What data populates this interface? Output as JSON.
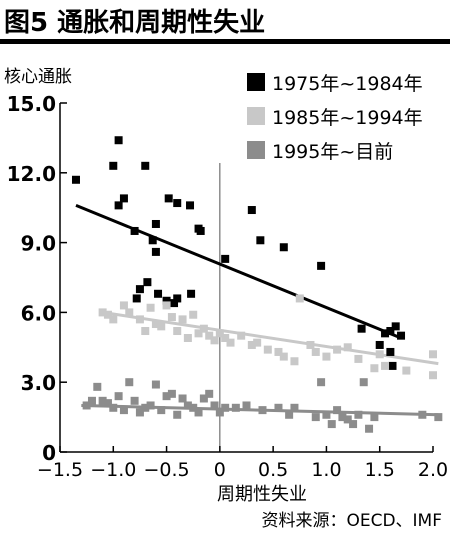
{
  "figure": {
    "title": "图5 通胀和周期性失业",
    "source": "资料来源：OECD、IMF"
  },
  "chart_data": {
    "type": "scatter",
    "xlabel": "周期性失业",
    "ylabel": "核心通胀",
    "xlim": [
      -1.5,
      2.0
    ],
    "ylim": [
      0,
      15.0
    ],
    "x_ticks": [
      "−1.5",
      "−1.0",
      "−0.5",
      "0",
      "0.5",
      "1.0",
      "1.5",
      "2.0"
    ],
    "x_tick_values": [
      -1.5,
      -1.0,
      -0.5,
      0,
      0.5,
      1.0,
      1.5,
      2.0
    ],
    "y_ticks": [
      "0",
      "3.0",
      "6.0",
      "9.0",
      "12.0",
      "15.0"
    ],
    "y_tick_values": [
      0,
      3,
      6,
      9,
      12,
      15
    ],
    "grid": false,
    "zero_lines": true,
    "legend_position": "top-right",
    "series": [
      {
        "name": "1975年~1984年",
        "color": "#000000",
        "points": [
          [
            -1.35,
            11.7
          ],
          [
            -1.0,
            12.3
          ],
          [
            -0.95,
            13.4
          ],
          [
            -0.95,
            10.6
          ],
          [
            -0.9,
            10.9
          ],
          [
            -0.8,
            9.5
          ],
          [
            -0.7,
            12.3
          ],
          [
            -0.78,
            6.6
          ],
          [
            -0.75,
            7.0
          ],
          [
            -0.68,
            7.3
          ],
          [
            -0.63,
            9.1
          ],
          [
            -0.6,
            9.8
          ],
          [
            -0.6,
            8.6
          ],
          [
            -0.58,
            6.8
          ],
          [
            -0.5,
            6.5
          ],
          [
            -0.48,
            10.9
          ],
          [
            -0.43,
            6.4
          ],
          [
            -0.4,
            6.6
          ],
          [
            -0.4,
            10.7
          ],
          [
            -0.28,
            10.6
          ],
          [
            -0.27,
            6.8
          ],
          [
            -0.2,
            9.6
          ],
          [
            -0.18,
            9.5
          ],
          [
            0.05,
            8.3
          ],
          [
            0.3,
            10.4
          ],
          [
            0.38,
            9.1
          ],
          [
            0.6,
            8.8
          ],
          [
            0.95,
            8.0
          ],
          [
            1.33,
            5.3
          ],
          [
            1.5,
            4.6
          ],
          [
            1.55,
            5.1
          ],
          [
            1.6,
            5.2
          ],
          [
            1.6,
            4.3
          ],
          [
            1.62,
            3.7
          ],
          [
            1.65,
            5.4
          ],
          [
            1.7,
            5.0
          ]
        ],
        "trend": [
          [
            -1.35,
            10.6
          ],
          [
            1.7,
            4.9
          ]
        ]
      },
      {
        "name": "1985年~1994年",
        "color": "#c8c8c8",
        "points": [
          [
            -1.1,
            6.0
          ],
          [
            -1.05,
            5.9
          ],
          [
            -1.0,
            5.7
          ],
          [
            -0.9,
            6.3
          ],
          [
            -0.85,
            6.0
          ],
          [
            -0.75,
            5.7
          ],
          [
            -0.7,
            5.2
          ],
          [
            -0.65,
            6.2
          ],
          [
            -0.6,
            5.5
          ],
          [
            -0.55,
            5.4
          ],
          [
            -0.5,
            6.3
          ],
          [
            -0.45,
            5.8
          ],
          [
            -0.4,
            5.2
          ],
          [
            -0.35,
            5.7
          ],
          [
            -0.3,
            4.9
          ],
          [
            -0.25,
            5.9
          ],
          [
            -0.2,
            5.1
          ],
          [
            -0.15,
            5.3
          ],
          [
            -0.1,
            5.0
          ],
          [
            -0.05,
            4.8
          ],
          [
            0.0,
            5.1
          ],
          [
            0.05,
            4.9
          ],
          [
            0.1,
            4.7
          ],
          [
            0.2,
            5.0
          ],
          [
            0.3,
            4.6
          ],
          [
            0.35,
            4.7
          ],
          [
            0.45,
            4.4
          ],
          [
            0.55,
            4.3
          ],
          [
            0.6,
            4.1
          ],
          [
            0.7,
            3.9
          ],
          [
            0.75,
            6.6
          ],
          [
            0.85,
            4.6
          ],
          [
            0.9,
            4.3
          ],
          [
            1.0,
            4.1
          ],
          [
            1.1,
            4.4
          ],
          [
            1.2,
            4.5
          ],
          [
            1.3,
            4.0
          ],
          [
            1.45,
            3.6
          ],
          [
            1.5,
            4.2
          ],
          [
            1.55,
            3.7
          ],
          [
            1.75,
            3.5
          ],
          [
            2.0,
            4.2
          ],
          [
            2.0,
            3.3
          ]
        ],
        "trend": [
          [
            -1.1,
            6.0
          ],
          [
            2.05,
            3.8
          ]
        ]
      },
      {
        "name": "1995年~目前",
        "color": "#8c8c8c",
        "points": [
          [
            -1.25,
            2.0
          ],
          [
            -1.2,
            2.2
          ],
          [
            -1.15,
            2.8
          ],
          [
            -1.1,
            2.2
          ],
          [
            -1.05,
            2.1
          ],
          [
            -1.0,
            1.9
          ],
          [
            -0.95,
            2.4
          ],
          [
            -0.9,
            1.8
          ],
          [
            -0.85,
            3.0
          ],
          [
            -0.8,
            2.2
          ],
          [
            -0.75,
            1.7
          ],
          [
            -0.7,
            1.9
          ],
          [
            -0.65,
            2.0
          ],
          [
            -0.6,
            2.9
          ],
          [
            -0.55,
            1.8
          ],
          [
            -0.5,
            2.4
          ],
          [
            -0.45,
            2.5
          ],
          [
            -0.4,
            1.6
          ],
          [
            -0.35,
            2.3
          ],
          [
            -0.3,
            2.0
          ],
          [
            -0.25,
            1.9
          ],
          [
            -0.2,
            1.7
          ],
          [
            -0.15,
            2.3
          ],
          [
            -0.1,
            2.5
          ],
          [
            -0.05,
            2.0
          ],
          [
            0.0,
            1.7
          ],
          [
            0.05,
            1.9
          ],
          [
            0.15,
            1.9
          ],
          [
            0.25,
            2.0
          ],
          [
            0.4,
            1.8
          ],
          [
            0.55,
            1.9
          ],
          [
            0.65,
            1.6
          ],
          [
            0.7,
            1.9
          ],
          [
            0.9,
            1.5
          ],
          [
            0.95,
            3.0
          ],
          [
            1.0,
            1.6
          ],
          [
            1.05,
            1.2
          ],
          [
            1.1,
            1.8
          ],
          [
            1.15,
            1.5
          ],
          [
            1.2,
            1.4
          ],
          [
            1.25,
            1.2
          ],
          [
            1.3,
            1.6
          ],
          [
            1.35,
            3.0
          ],
          [
            1.4,
            1.0
          ],
          [
            1.45,
            1.5
          ],
          [
            1.9,
            1.6
          ],
          [
            2.05,
            1.5
          ]
        ],
        "trend": [
          [
            -1.3,
            2.0
          ],
          [
            2.05,
            1.6
          ]
        ]
      }
    ]
  }
}
